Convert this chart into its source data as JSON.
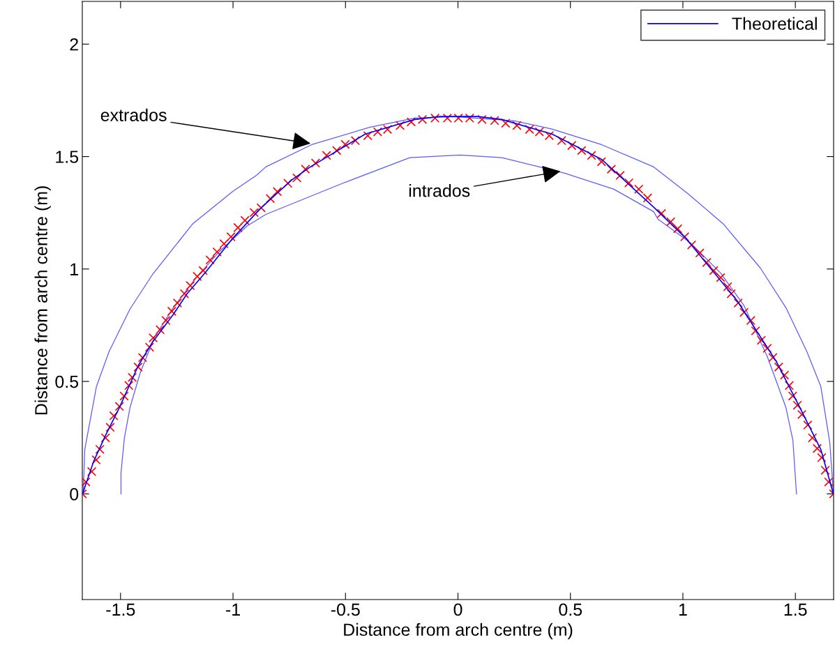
{
  "chart_data": {
    "type": "line",
    "xlabel": "Distance from arch centre (m)",
    "ylabel": "Distance from arch centre (m)",
    "xlim": [
      -1.67,
      1.67
    ],
    "ylim": [
      -0.47,
      2.19
    ],
    "xticks": [
      -1.5,
      -1,
      -0.5,
      0,
      0.5,
      1,
      1.5
    ],
    "yticks": [
      0,
      0.5,
      1,
      1.5,
      2
    ],
    "grid": false,
    "legend": "top right",
    "annotations": [
      {
        "text": "extrados",
        "x": -0.647,
        "y": 1.557
      },
      {
        "text": "intrados",
        "x": 0.464,
        "y": 1.436
      }
    ],
    "series": [
      {
        "type": "scatter",
        "color": "#ff0000",
        "marker": "cross",
        "x": [
          -1.67,
          -1.654,
          -1.628,
          -1.608,
          -1.592,
          -1.567,
          -1.546,
          -1.53,
          -1.505,
          -1.484,
          -1.463,
          -1.448,
          -1.422,
          -1.402,
          -1.371,
          -1.355,
          -1.324,
          -1.298,
          -1.272,
          -1.247,
          -1.216,
          -1.19,
          -1.159,
          -1.133,
          -1.102,
          -1.071,
          -1.04,
          -1.009,
          -0.978,
          -0.947,
          -0.906,
          -0.875,
          -0.834,
          -0.803,
          -0.756,
          -0.716,
          -0.678,
          -0.633,
          -0.584,
          -0.539,
          -0.501,
          -0.456,
          -0.401,
          -0.357,
          -0.313,
          -0.257,
          -0.208,
          -0.158,
          -0.102,
          -0.047,
          0.002,
          0.052,
          0.107,
          0.163,
          0.212,
          0.262,
          0.318,
          0.362,
          0.406,
          0.461,
          0.506,
          0.55,
          0.594,
          0.638,
          0.682,
          0.721,
          0.76,
          0.804,
          0.843,
          0.905,
          0.946,
          0.977,
          1.008,
          1.039,
          1.075,
          1.106,
          1.137,
          1.168,
          1.199,
          1.215,
          1.246,
          1.272,
          1.302,
          1.323,
          1.349,
          1.375,
          1.4,
          1.426,
          1.452,
          1.473,
          1.488,
          1.509,
          1.529,
          1.555,
          1.576,
          1.597,
          1.617,
          1.633,
          1.648,
          1.67
        ],
        "values": [
          0,
          0.053,
          0.099,
          0.151,
          0.198,
          0.249,
          0.296,
          0.347,
          0.389,
          0.435,
          0.482,
          0.518,
          0.564,
          0.606,
          0.652,
          0.694,
          0.73,
          0.771,
          0.812,
          0.849,
          0.89,
          0.926,
          0.967,
          0.993,
          1.04,
          1.076,
          1.112,
          1.143,
          1.184,
          1.216,
          1.251,
          1.272,
          1.313,
          1.344,
          1.381,
          1.405,
          1.444,
          1.471,
          1.505,
          1.527,
          1.554,
          1.571,
          1.593,
          1.61,
          1.621,
          1.638,
          1.654,
          1.665,
          1.671,
          1.671,
          1.671,
          1.671,
          1.665,
          1.66,
          1.648,
          1.638,
          1.621,
          1.61,
          1.593,
          1.571,
          1.549,
          1.527,
          1.505,
          1.477,
          1.444,
          1.416,
          1.383,
          1.355,
          1.316,
          1.247,
          1.21,
          1.179,
          1.143,
          1.107,
          1.071,
          1.029,
          0.993,
          0.962,
          0.921,
          0.89,
          0.849,
          0.807,
          0.771,
          0.725,
          0.683,
          0.647,
          0.606,
          0.564,
          0.528,
          0.482,
          0.435,
          0.394,
          0.353,
          0.306,
          0.249,
          0.202,
          0.161,
          0.105,
          0.053,
          0
        ]
      },
      {
        "name": "Theoretical",
        "color": "#0000ff",
        "x": [
          -1.669,
          -1.619,
          -1.567,
          -1.505,
          -1.421,
          -1.359,
          -1.266,
          -1.204,
          -1.124,
          -1.0,
          -0.876,
          -0.74,
          -0.656,
          -0.412,
          -0.192,
          -0.08,
          0.087,
          0.195,
          0.418,
          0.638,
          0.87,
          1.012,
          1.241,
          1.415,
          1.52,
          1.613,
          1.669
        ],
        "values": [
          0,
          0.146,
          0.26,
          0.384,
          0.571,
          0.673,
          0.797,
          0.89,
          0.983,
          1.138,
          1.271,
          1.395,
          1.454,
          1.6,
          1.665,
          1.678,
          1.678,
          1.665,
          1.6,
          1.488,
          1.275,
          1.138,
          0.859,
          0.589,
          0.384,
          0.198,
          0
        ]
      },
      {
        "color": "#5a5aff",
        "x": [
          -1.666,
          -1.659,
          -1.607,
          -1.551,
          -1.458,
          -1.359,
          -1.18,
          -1.0,
          -0.895,
          -0.854,
          -0.65,
          -0.39,
          -0.192,
          -0.015,
          0.251,
          0.418,
          0.638,
          0.87,
          1.025,
          1.18,
          1.344,
          1.458,
          1.551,
          1.613,
          1.653,
          1.669
        ],
        "values": [
          0,
          0.198,
          0.478,
          0.633,
          0.822,
          0.974,
          1.2,
          1.346,
          1.417,
          1.454,
          1.553,
          1.631,
          1.671,
          1.677,
          1.659,
          1.622,
          1.553,
          1.454,
          1.333,
          1.2,
          1.005,
          0.828,
          0.633,
          0.478,
          0.229,
          0
        ]
      },
      {
        "color": "#5a5aff",
        "x": [
          -1.498,
          -1.498,
          -1.483,
          -1.458,
          -1.412,
          -1.35,
          -1.266,
          -1.164,
          -1.062,
          -0.938,
          -0.854,
          -0.523,
          -0.214,
          0.009,
          0.195,
          0.362,
          0.474,
          0.693,
          0.87,
          0.889,
          1.034,
          1.167,
          1.272,
          1.375,
          1.458,
          1.489,
          1.505
        ],
        "values": [
          0,
          0.093,
          0.248,
          0.384,
          0.54,
          0.695,
          0.828,
          0.961,
          1.076,
          1.191,
          1.243,
          1.377,
          1.495,
          1.507,
          1.495,
          1.454,
          1.426,
          1.355,
          1.255,
          1.222,
          1.116,
          0.983,
          0.837,
          0.611,
          0.384,
          0.239,
          0
        ]
      }
    ]
  }
}
